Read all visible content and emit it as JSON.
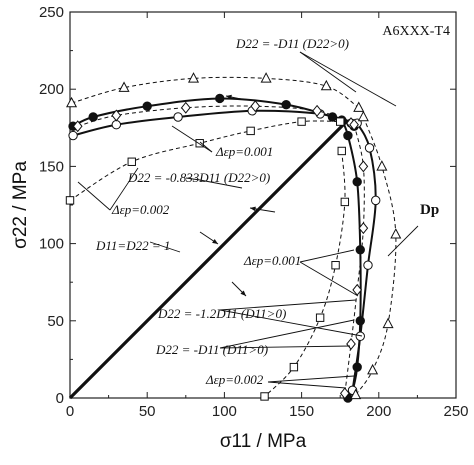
{
  "chart_data": {
    "type": "scatter",
    "title": "",
    "tag": "A6XXX-T4",
    "xlabel": "σ11 / MPa",
    "ylabel": "σ22 / MPa",
    "xlim": [
      0,
      250
    ],
    "ylim": [
      0,
      250
    ],
    "xticks": [
      "0",
      "50",
      "100",
      "150",
      "200",
      "250"
    ],
    "yticks": [
      "0",
      "50",
      "100",
      "150",
      "200",
      "250"
    ],
    "grid": false,
    "series": [
      {
        "style": "solid-thick",
        "marker": "none",
        "x": [
          0,
          20,
          60,
          100,
          140,
          165,
          180
        ],
        "y": [
          0,
          20,
          60,
          100,
          140,
          165,
          180
        ]
      },
      {
        "style": "solid",
        "marker": "filled-circle",
        "x": [
          2,
          15,
          50,
          97,
          140,
          170,
          184
        ],
        "y": [
          176,
          182,
          189,
          194,
          190,
          182,
          176
        ]
      },
      {
        "style": "solid",
        "marker": "filled-circle",
        "x": [
          176,
          180,
          186,
          188,
          188,
          186,
          183,
          180
        ],
        "y": [
          180,
          170,
          140,
          96,
          50,
          20,
          5,
          0
        ]
      },
      {
        "style": "solid",
        "marker": "open-circle",
        "x": [
          2,
          30,
          70,
          118,
          162,
          182
        ],
        "y": [
          170,
          177,
          182,
          186,
          184,
          178
        ]
      },
      {
        "style": "solid",
        "marker": "open-circle",
        "x": [
          186,
          194,
          198,
          193,
          188,
          183
        ],
        "y": [
          178,
          162,
          128,
          86,
          40,
          5
        ]
      },
      {
        "style": "dashed",
        "marker": "open-diamond",
        "x": [
          5,
          30,
          75,
          120,
          160,
          182
        ],
        "y": [
          176,
          183,
          188,
          189,
          186,
          178
        ]
      },
      {
        "style": "dashed",
        "marker": "open-diamond",
        "x": [
          184,
          190,
          190,
          186,
          182,
          178
        ],
        "y": [
          177,
          150,
          110,
          70,
          35,
          3
        ]
      },
      {
        "style": "dashed",
        "marker": "open-triangle",
        "x": [
          1,
          35,
          80,
          127,
          166,
          187
        ],
        "y": [
          191,
          201,
          207,
          207,
          202,
          188
        ]
      },
      {
        "style": "dashed",
        "marker": "open-triangle",
        "x": [
          190,
          202,
          211,
          206,
          196,
          185
        ],
        "y": [
          182,
          150,
          106,
          48,
          18,
          2
        ]
      },
      {
        "style": "dashed",
        "marker": "open-square",
        "x": [
          0,
          40,
          84,
          117,
          150,
          175
        ],
        "y": [
          128,
          153,
          165,
          173,
          179,
          179
        ]
      },
      {
        "style": "dashed",
        "marker": "open-square",
        "x": [
          176,
          178,
          172,
          162,
          145,
          126
        ],
        "y": [
          160,
          127,
          86,
          52,
          20,
          1
        ]
      }
    ],
    "annotations": [
      "D22 = -D11 (D22>0)",
      "Δεp=0.001",
      "D22 = -0.833D11 (D22>0)",
      "Δεp=0.002",
      "D11=D22 = 1",
      "Dp",
      "Δεp=0.001",
      "D22 = -1.2D11 (D11>0)",
      "D22 = -D11 (D11>0)",
      "Δεp=0.002"
    ]
  }
}
